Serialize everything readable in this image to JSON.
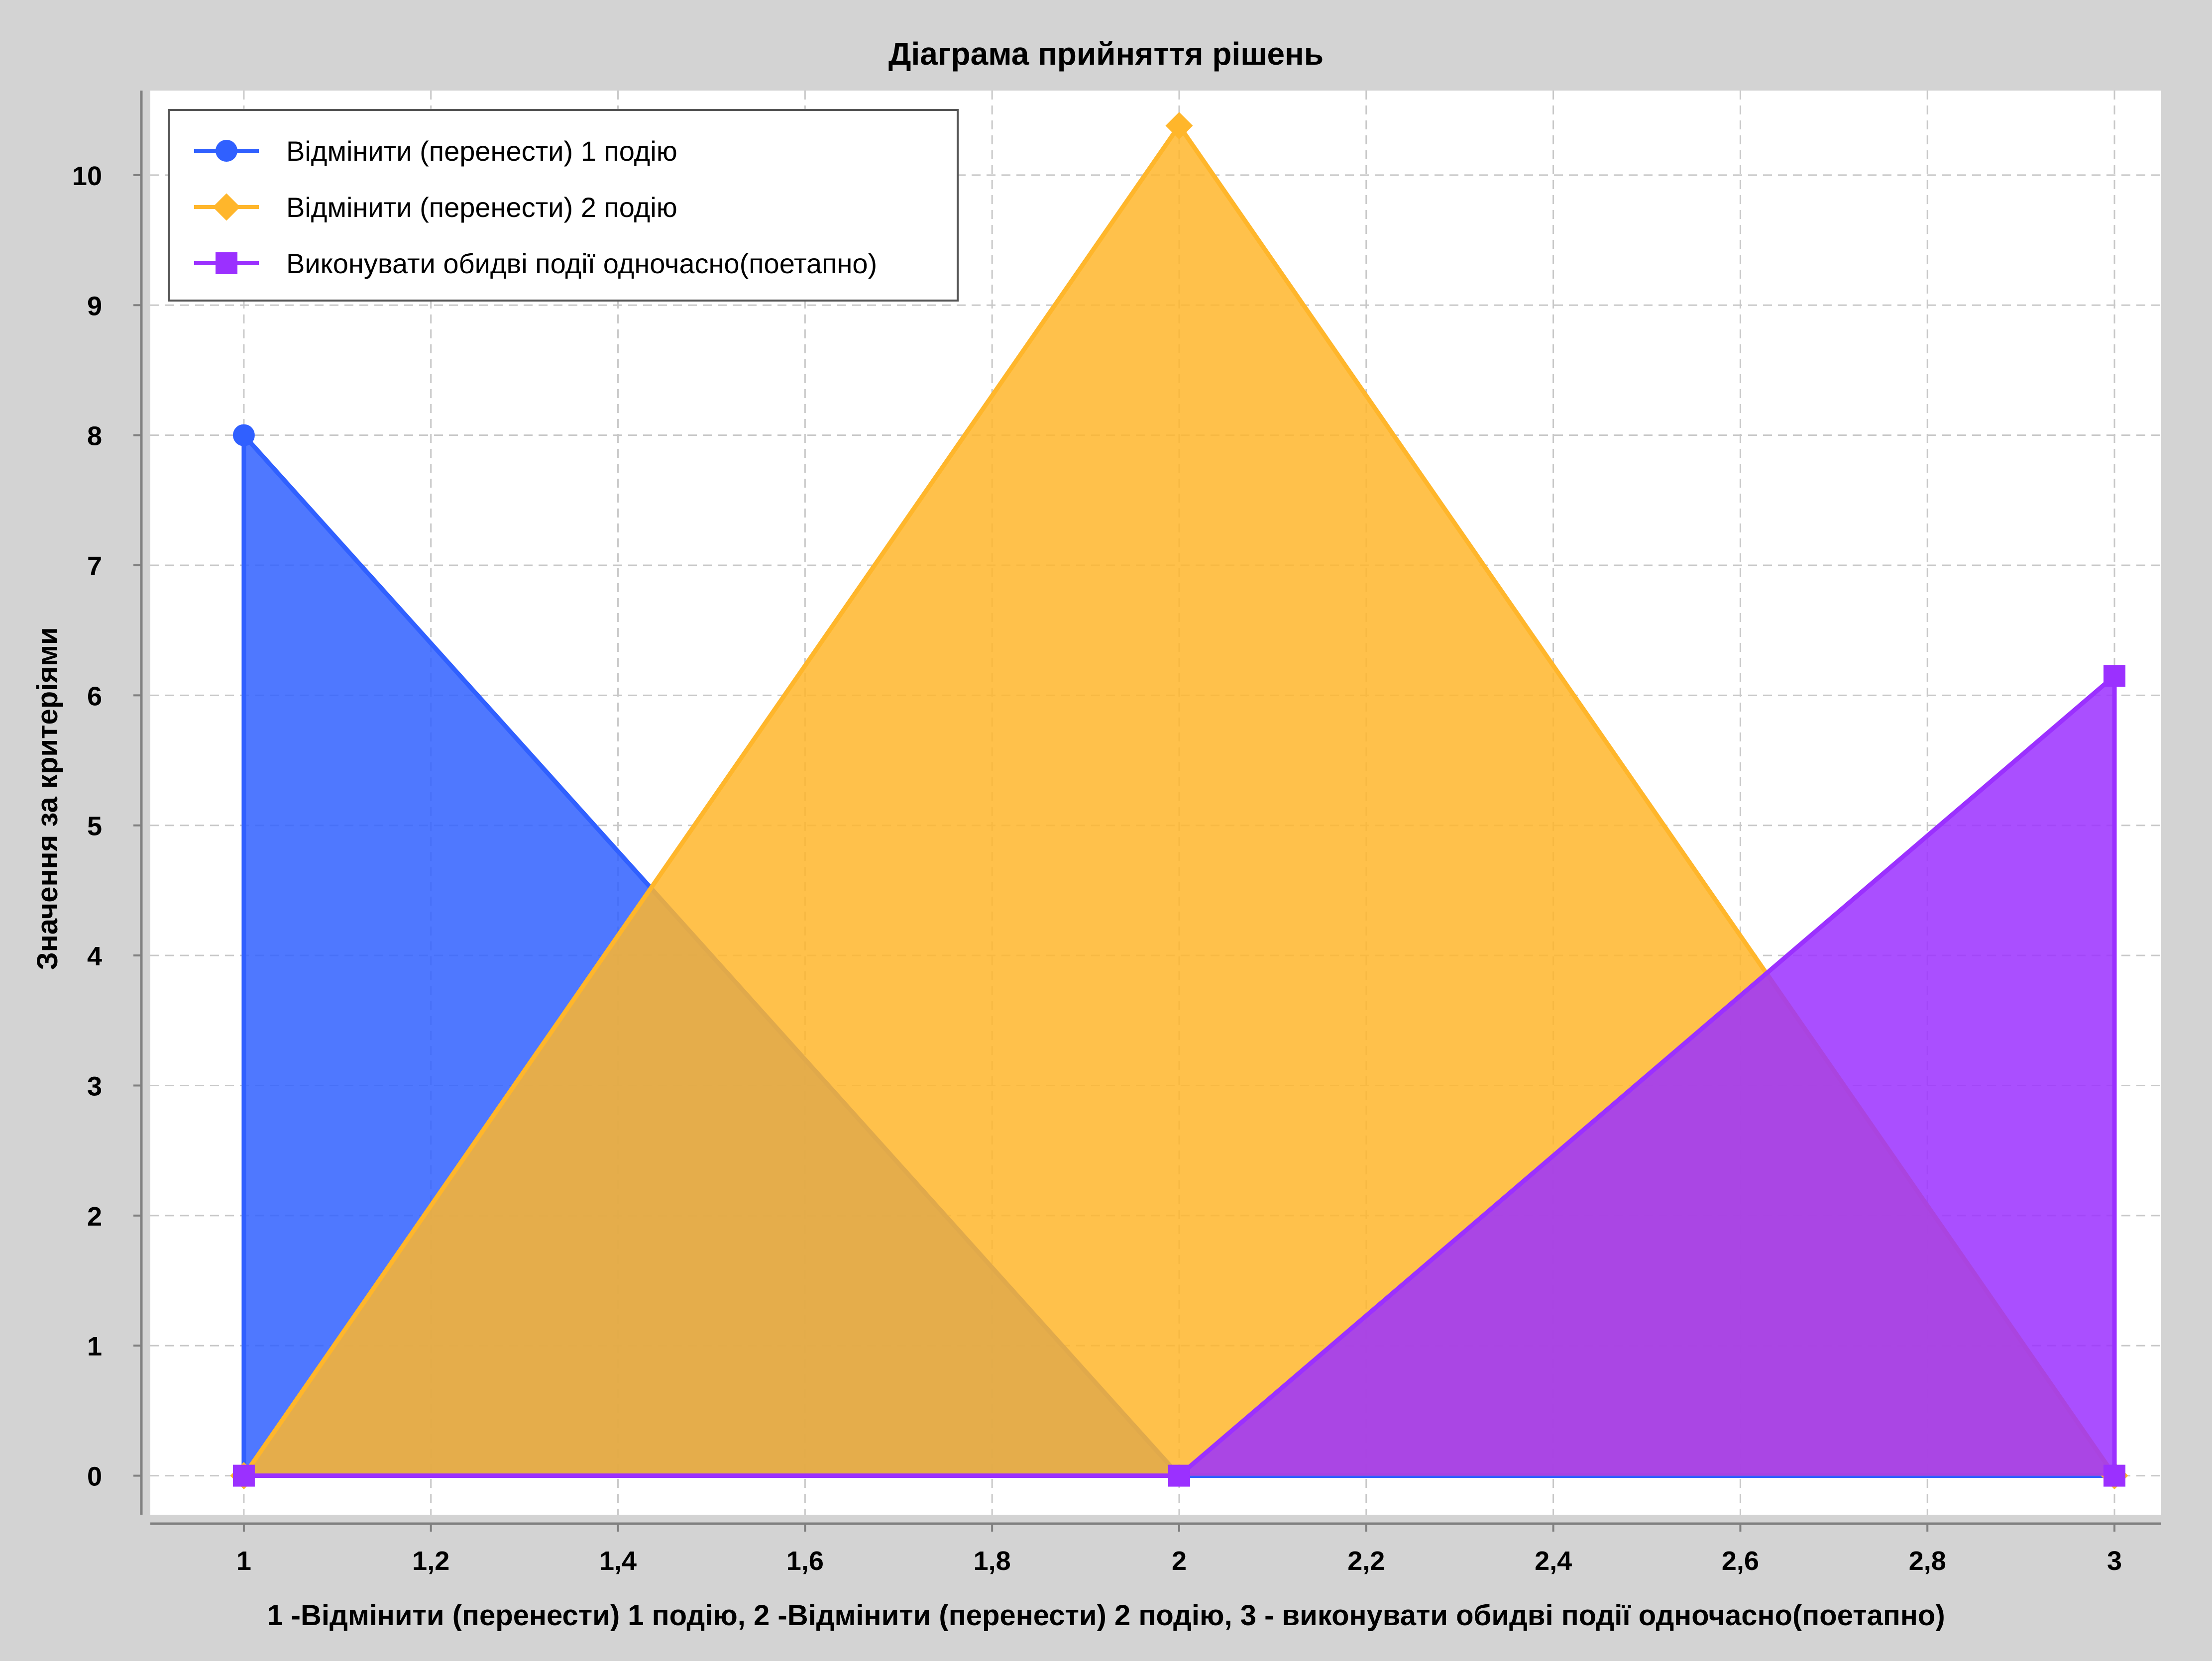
{
  "chart_data": {
    "type": "area",
    "title": "Діаграма прийняття рішень",
    "xlabel": "1 -Відмінити (перенести) 1 подію,     2 -Відмінити (перенести) 2 подію,     3 - виконувати обидві події одночасно(поетапно)",
    "ylabel": "Значення за критеріями",
    "xlim": [
      0.9,
      3.05
    ],
    "ylim": [
      -0.3,
      10.65
    ],
    "x_ticks": [
      "1",
      "1,2",
      "1,4",
      "1,6",
      "1,8",
      "2",
      "2,2",
      "2,4",
      "2,6",
      "2,8",
      "3"
    ],
    "x_tick_values": [
      1,
      1.2,
      1.4,
      1.6,
      1.8,
      2,
      2.2,
      2.4,
      2.6,
      2.8,
      3
    ],
    "y_ticks": [
      "0",
      "1",
      "2",
      "3",
      "4",
      "5",
      "6",
      "7",
      "8",
      "9",
      "10"
    ],
    "y_tick_values": [
      0,
      1,
      2,
      3,
      4,
      5,
      6,
      7,
      8,
      9,
      10
    ],
    "grid": true,
    "legend_position": "top-left",
    "series": [
      {
        "name": "Відмінити (перенести) 1 подію",
        "color": "#3060ff",
        "marker": "circle",
        "x": [
          1,
          1,
          2,
          3
        ],
        "y": [
          0,
          8,
          0,
          0
        ]
      },
      {
        "name": "Відмінити (перенести) 2 подію",
        "color": "#ffb62b",
        "marker": "diamond",
        "x": [
          1,
          2,
          3
        ],
        "y": [
          0,
          10.38,
          0
        ]
      },
      {
        "name": "Виконувати обидві події одночасно(поетапно)",
        "color": "#9b30ff",
        "marker": "square",
        "x": [
          1,
          2,
          3,
          3
        ],
        "y": [
          0,
          0,
          6.15,
          0
        ]
      }
    ]
  }
}
